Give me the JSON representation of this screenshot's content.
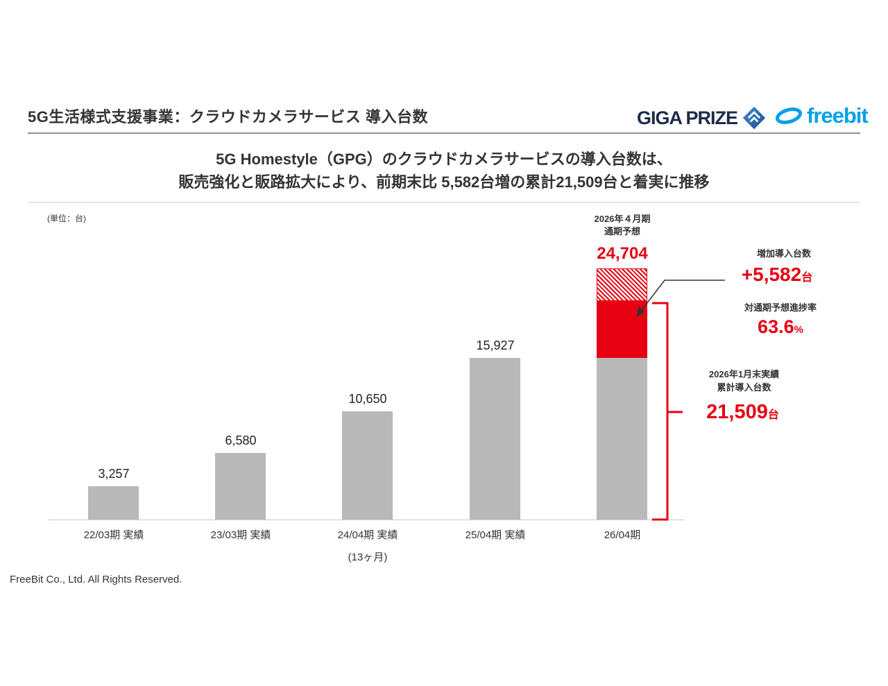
{
  "colors": {
    "accent_red": "#e60012",
    "bar_gray": "#b9b9b9",
    "gigaprize_navy": "#1c2b4a",
    "gigaprize_blue": "#2e6fb7",
    "freebit_blue": "#00a0e9",
    "text_dark": "#333333"
  },
  "header": {
    "title": "5G生活様式支援事業：クラウドカメラサービス 導入台数",
    "gigaprize_logo_text": "GIGA PRIZE",
    "freebit_logo_text": "freebit"
  },
  "subtitle": {
    "line1": "5G Homestyle（GPG）のクラウドカメラサービスの導入台数は、",
    "line2": "販売強化と販路拡大により、前期末比 5,582台増の累計21,509台と着実に推移"
  },
  "chart_data": {
    "type": "bar",
    "unit_label": "(単位：台)",
    "categories": [
      "22/03期 実績",
      "23/03期 実績",
      "24/04期 実績",
      "25/04期 実績",
      "26/04期"
    ],
    "x_note": "(13ヶ月)",
    "values": [
      3257,
      6580,
      10650,
      15927
    ],
    "value_labels": [
      "3,257",
      "6,580",
      "10,650",
      "15,927"
    ],
    "last_bar": {
      "base_value": 15927,
      "cumulative_value": 21509,
      "forecast_value": 24704,
      "forecast_label": "24,704"
    },
    "ylim": [
      0,
      30000
    ],
    "legend": "none",
    "grid": false,
    "annotations": {
      "forecast_caption_line1": "2026年４月期",
      "forecast_caption_line2": "通期予想",
      "increase_caption": "増加導入台数",
      "increase_value": "+5,582",
      "increase_unit": "台",
      "progress_caption": "対通期予想進捗率",
      "progress_value": "63.6",
      "progress_unit": "%",
      "cumulative_caption_line1": "2026年1月末実績",
      "cumulative_caption_line2": "累計導入台数",
      "cumulative_value": "21,509",
      "cumulative_unit": "台"
    }
  },
  "footer": "FreeBit Co., Ltd. All Rights Reserved."
}
